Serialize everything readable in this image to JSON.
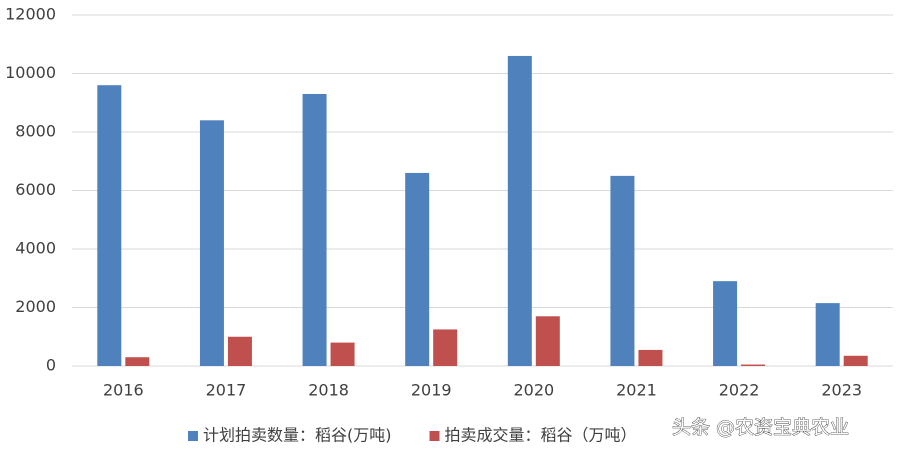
{
  "chart_data": {
    "type": "bar",
    "categories": [
      "2016",
      "2017",
      "2018",
      "2019",
      "2020",
      "2021",
      "2022",
      "2023"
    ],
    "series": [
      {
        "name": "计划拍卖数量：稻谷(万吨)",
        "color": "#4f81bd",
        "values": [
          9600,
          8400,
          9300,
          6600,
          10600,
          6500,
          2900,
          2150
        ]
      },
      {
        "name": "拍卖成交量：稻谷（万吨）",
        "color": "#c0504d",
        "values": [
          300,
          1000,
          800,
          1250,
          1700,
          550,
          50,
          350
        ]
      }
    ],
    "ylim": [
      0,
      12000
    ],
    "yticks": [
      0,
      2000,
      4000,
      6000,
      8000,
      10000,
      12000
    ],
    "grid": true,
    "legend": "bottom"
  },
  "watermark": "头条 @农资宝典农业"
}
